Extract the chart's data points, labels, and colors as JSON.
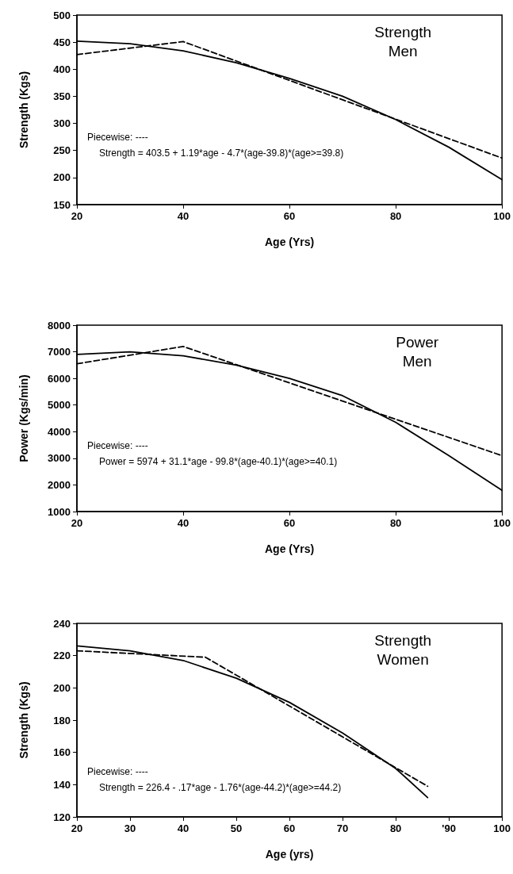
{
  "chart_data": [
    {
      "type": "line",
      "title": "Strength\nMen",
      "xlabel": "Age (Yrs)",
      "ylabel": "Strength (Kgs)",
      "annotations": [
        "Piecewise: ----",
        "Strength = 403.5 + 1.19*age - 4.7*(age-39.8)*(age>=39.8)"
      ],
      "xlim": [
        20,
        100
      ],
      "xticks": [
        20,
        40,
        60,
        80,
        100
      ],
      "ylim": [
        150,
        500
      ],
      "yticks": [
        150,
        200,
        250,
        300,
        350,
        400,
        450,
        500
      ],
      "grid": false,
      "marker": "none",
      "series": [
        {
          "color": "#000000",
          "line_style": "solid",
          "x": [
            20,
            30,
            40,
            50,
            60,
            70,
            80,
            90,
            100
          ],
          "values": [
            452,
            447,
            434,
            412,
            383,
            350,
            307,
            256,
            196
          ]
        },
        {
          "color": "#000000",
          "line_style": "dashed",
          "x": [
            20,
            40,
            100
          ],
          "values": [
            427,
            451,
            236
          ]
        }
      ]
    },
    {
      "type": "line",
      "title": "Power\nMen",
      "xlabel": "Age (Yrs)",
      "ylabel": "Power (Kgs/min)",
      "annotations": [
        "Piecewise: ----",
        "Power = 5974 + 31.1*age - 99.8*(age-40.1)*(age>=40.1)"
      ],
      "xlim": [
        20,
        100
      ],
      "xticks": [
        20,
        40,
        60,
        80,
        100
      ],
      "ylim": [
        1000,
        8000
      ],
      "yticks": [
        1000,
        2000,
        3000,
        4000,
        5000,
        6000,
        7000,
        8000
      ],
      "grid": false,
      "marker": "none",
      "series": [
        {
          "color": "#000000",
          "line_style": "solid",
          "x": [
            20,
            30,
            40,
            50,
            60,
            70,
            80,
            90,
            100
          ],
          "values": [
            6900,
            7000,
            6850,
            6500,
            6000,
            5350,
            4350,
            3100,
            1800
          ]
        },
        {
          "color": "#000000",
          "line_style": "dashed",
          "x": [
            20,
            40,
            100
          ],
          "values": [
            6550,
            7200,
            3100
          ]
        }
      ]
    },
    {
      "type": "line",
      "title": "Strength\nWomen",
      "xlabel": "Age (yrs)",
      "ylabel": "Strength (Kgs)",
      "annotations": [
        "Piecewise: ----",
        "Strength = 226.4 - .17*age - 1.76*(age-44.2)*(age>=44.2)"
      ],
      "xlim": [
        20,
        100
      ],
      "xticks": [
        20,
        30,
        40,
        50,
        60,
        70,
        80,
        {
          "value": 90,
          "label": "'90"
        },
        100
      ],
      "ylim": [
        120,
        240
      ],
      "yticks": [
        120,
        140,
        160,
        180,
        200,
        220,
        240
      ],
      "grid": false,
      "marker": "none",
      "series": [
        {
          "color": "#000000",
          "line_style": "solid",
          "x": [
            20,
            30,
            40,
            50,
            60,
            70,
            80,
            86
          ],
          "values": [
            226,
            223,
            217,
            206,
            191,
            172,
            150,
            132
          ]
        },
        {
          "color": "#000000",
          "line_style": "dashed",
          "x": [
            20,
            44.2,
            86
          ],
          "values": [
            223,
            219,
            139
          ]
        }
      ]
    }
  ]
}
